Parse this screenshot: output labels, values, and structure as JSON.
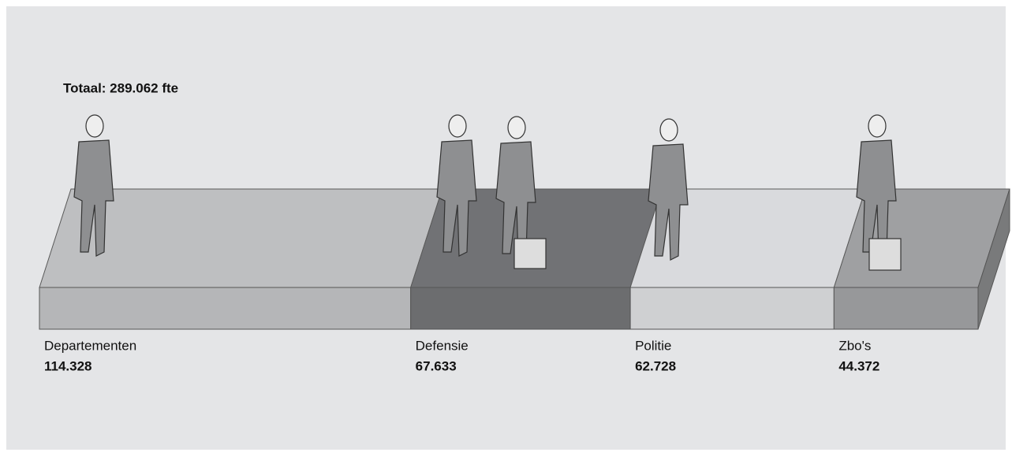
{
  "chart_data": {
    "type": "stacked-block",
    "title": "Totaal: 289.062 fte",
    "categories": [
      "Departementen",
      "Defensie",
      "Politie",
      "Zbo's"
    ],
    "values": [
      114328,
      67633,
      62728,
      44372
    ],
    "value_labels": [
      "114.328",
      "67.633",
      "62.728",
      "44.372"
    ],
    "colors": [
      "#b5b6b8",
      "#6c6d6f",
      "#cfd0d2",
      "#97989a"
    ]
  }
}
